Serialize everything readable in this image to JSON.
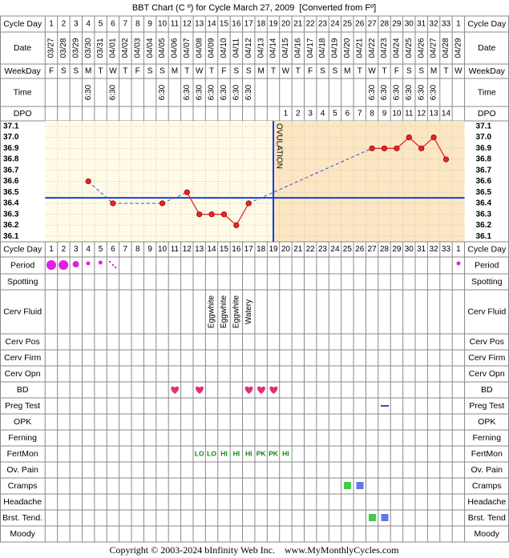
{
  "title": "BBT Chart (C º) for Cycle March 27, 2009  [Converted from Fº]",
  "labels": {
    "cycle_day": "Cycle Day",
    "date": "Date",
    "weekday": "WeekDay",
    "time": "Time",
    "dpo": "DPO",
    "period": "Period",
    "spotting": "Spotting",
    "cerv_fluid": "Cerv Fluid",
    "cerv_pos": "Cerv Pos",
    "cerv_firm": "Cerv Firm",
    "cerv_opn": "Cerv Opn",
    "bd": "BD",
    "preg_test": "Preg Test",
    "opk": "OPK",
    "ferning": "Ferning",
    "fertmon": "FertMon",
    "ov_pain": "Ov. Pain",
    "cramps": "Cramps",
    "headache": "Headache",
    "brst_tend": "Brst. Tend.",
    "brst_tend_right": "Brst. Tend",
    "moody": "Moody"
  },
  "dates": [
    "03/27",
    "03/28",
    "03/29",
    "03/30",
    "03/31",
    "04/01",
    "04/02",
    "04/03",
    "04/04",
    "04/05",
    "04/06",
    "04/07",
    "04/08",
    "04/09",
    "04/10",
    "04/11",
    "04/12",
    "04/13",
    "04/14",
    "04/15",
    "04/16",
    "04/17",
    "04/18",
    "04/19",
    "04/20",
    "04/21",
    "04/22",
    "04/23",
    "04/24",
    "04/25",
    "04/26",
    "04/27",
    "04/28",
    "04/29"
  ],
  "weekdays": [
    "F",
    "S",
    "S",
    "M",
    "T",
    "W",
    "T",
    "F",
    "S",
    "S",
    "M",
    "T",
    "W",
    "T",
    "F",
    "S",
    "S",
    "M",
    "T",
    "W",
    "T",
    "F",
    "S",
    "S",
    "M",
    "T",
    "W",
    "T",
    "F",
    "S",
    "S",
    "M",
    "T",
    "W"
  ],
  "times": [
    null,
    null,
    null,
    "6:30",
    null,
    "6:30",
    null,
    null,
    null,
    "6:30",
    null,
    "6:30",
    "6:30",
    "6:30",
    "6:30",
    "6:30",
    "6:30",
    null,
    null,
    null,
    null,
    null,
    null,
    null,
    null,
    null,
    "6:30",
    "6:30",
    "6:30",
    "6:30",
    "6:30",
    "6:30",
    null,
    null
  ],
  "dpo": [
    null,
    null,
    null,
    null,
    null,
    null,
    null,
    null,
    null,
    null,
    null,
    null,
    null,
    null,
    null,
    null,
    null,
    null,
    null,
    1,
    2,
    3,
    4,
    5,
    6,
    7,
    8,
    9,
    10,
    11,
    12,
    13,
    14,
    null
  ],
  "cerv_fluid": [
    null,
    null,
    null,
    null,
    null,
    null,
    null,
    null,
    null,
    null,
    null,
    null,
    null,
    "Eggwhite",
    "Eggwhite",
    "Eggwhite",
    "Watery",
    null,
    null,
    null,
    null,
    null,
    null,
    null,
    null,
    null,
    null,
    null,
    null,
    null,
    null,
    null,
    null,
    null
  ],
  "fertmon": [
    null,
    null,
    null,
    null,
    null,
    null,
    null,
    null,
    null,
    null,
    null,
    null,
    "LO",
    "LO",
    "HI",
    "HI",
    "HI",
    "PK",
    "PK",
    "HI",
    null,
    null,
    null,
    null,
    null,
    null,
    null,
    null,
    null,
    null,
    null,
    null,
    null,
    null
  ],
  "chart_data": {
    "type": "line",
    "categories": [
      1,
      2,
      3,
      4,
      5,
      6,
      7,
      8,
      9,
      10,
      11,
      12,
      13,
      14,
      15,
      16,
      17,
      18,
      19,
      20,
      21,
      22,
      23,
      24,
      25,
      26,
      27,
      28,
      29,
      30,
      31,
      32,
      33,
      1
    ],
    "values": [
      null,
      null,
      null,
      36.6,
      null,
      36.4,
      null,
      null,
      null,
      36.4,
      null,
      36.5,
      36.3,
      36.3,
      36.3,
      36.2,
      36.4,
      null,
      null,
      null,
      null,
      null,
      null,
      null,
      null,
      null,
      36.9,
      36.9,
      36.9,
      37.0,
      36.9,
      37.0,
      36.8,
      null
    ],
    "color": "#e02828",
    "ylim": [
      36.05,
      37.15
    ],
    "yticks": [
      37.1,
      {
        "value": 37.0,
        "label": "37.0"
      },
      36.9,
      36.8,
      36.7,
      36.6,
      36.5,
      36.4,
      36.3,
      36.2,
      36.1
    ],
    "grid": true,
    "coverline": 36.45,
    "ovulation_day": 19,
    "ovulation_label": "OVULATION"
  },
  "copyright": "Copyright © 2003-2024 bInfinity Web Inc.    www.MyMonthlyCycles.com"
}
